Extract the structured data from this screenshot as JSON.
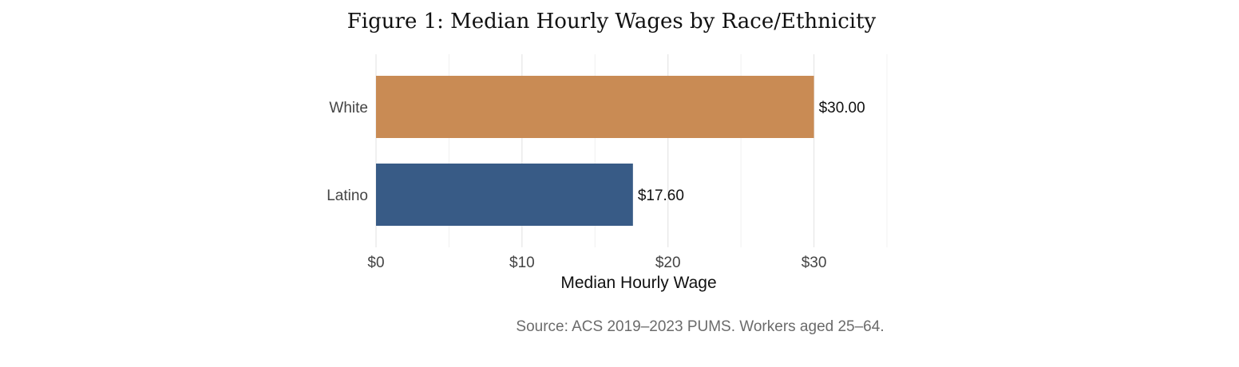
{
  "chart_data": {
    "type": "bar",
    "orientation": "horizontal",
    "title": "Figure 1: Median Hourly Wages by Race/Ethnicity",
    "categories": [
      "White",
      "Latino"
    ],
    "values": [
      30.0,
      17.6
    ],
    "value_labels": [
      "$30.00",
      "$17.60"
    ],
    "colors": [
      "#C98B54",
      "#385B86"
    ],
    "xlabel": "Median Hourly Wage",
    "ylabel": "",
    "xlim": [
      0,
      35
    ],
    "xticks": [
      0,
      10,
      20,
      30
    ],
    "xtick_labels": [
      "$0",
      "$10",
      "$20",
      "$30"
    ],
    "grid": true,
    "legend": "none"
  },
  "caption": {
    "source": "Source: ACS 2019–2023 PUMS. Workers aged 25–64."
  }
}
